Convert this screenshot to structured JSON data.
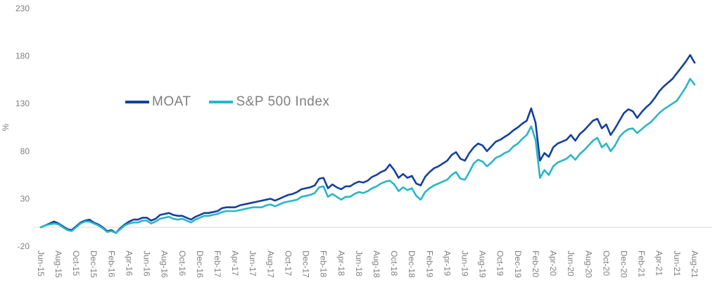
{
  "chart_data": {
    "type": "line",
    "title": "",
    "xlabel": "",
    "ylabel": "%",
    "ylim": [
      -20,
      230
    ],
    "y_ticks": [
      230,
      180,
      130,
      80,
      30,
      -20
    ],
    "grid": "zero-baseline-only",
    "baseline_value": 0,
    "points_per_month": 2,
    "legend_position": "inside-upper-left",
    "x_tick_labels": [
      "Jun-15",
      "Aug-15",
      "Oct-15",
      "Dec-15",
      "Feb-16",
      "Apr-16",
      "Jun-16",
      "Aug-16",
      "Oct-16",
      "Dec-16",
      "Feb-17",
      "Apr-17",
      "Jun-17",
      "Aug-17",
      "Oct-17",
      "Dec-17",
      "Feb-18",
      "Apr-18",
      "Jun-18",
      "Aug-18",
      "Oct-18",
      "Dec-18",
      "Feb-19",
      "Apr-19",
      "Jun-19",
      "Aug-19",
      "Oct-19",
      "Dec-19",
      "Feb-20",
      "Apr-20",
      "Jun-20",
      "Aug-20",
      "Oct-20",
      "Dec-20",
      "Feb-21",
      "Apr-21",
      "Jun-21",
      "Aug-21"
    ],
    "series": [
      {
        "name": "MOAT",
        "color": "#16409E",
        "values": [
          0,
          2,
          4,
          6,
          4,
          1,
          -2,
          -3,
          1,
          5,
          7,
          8,
          5,
          3,
          0,
          -4,
          -3,
          -6,
          -1,
          3,
          6,
          8,
          8,
          10,
          10,
          7,
          9,
          13,
          14,
          15,
          13,
          12,
          12,
          10,
          8,
          11,
          13,
          15,
          15,
          16,
          17,
          20,
          21,
          21,
          21,
          23,
          24,
          25,
          26,
          27,
          28,
          29,
          30,
          28,
          30,
          32,
          34,
          35,
          37,
          40,
          41,
          42,
          44,
          51,
          52,
          41,
          45,
          42,
          40,
          43,
          43,
          46,
          48,
          47,
          49,
          53,
          55,
          58,
          60,
          66,
          60,
          52,
          56,
          52,
          54,
          46,
          44,
          53,
          58,
          62,
          64,
          67,
          70,
          76,
          79,
          72,
          70,
          78,
          84,
          88,
          86,
          80,
          85,
          90,
          92,
          95,
          98,
          102,
          105,
          109,
          112,
          125,
          110,
          70,
          78,
          74,
          84,
          88,
          90,
          92,
          97,
          91,
          98,
          102,
          107,
          112,
          114,
          104,
          108,
          97,
          104,
          112,
          120,
          124,
          122,
          115,
          121,
          126,
          130,
          136,
          143,
          148,
          152,
          156,
          162,
          168,
          174,
          181,
          173
        ]
      },
      {
        "name": "S&P 500 Index",
        "color": "#29B6C8",
        "values": [
          0,
          2,
          3,
          4,
          3,
          0,
          -3,
          -4,
          0,
          4,
          6,
          6,
          4,
          2,
          -1,
          -5,
          -4,
          -6,
          -2,
          2,
          4,
          5,
          5,
          7,
          7,
          4,
          6,
          9,
          10,
          11,
          9,
          8,
          9,
          7,
          5,
          8,
          10,
          12,
          12,
          13,
          14,
          16,
          17,
          17,
          17,
          18,
          19,
          20,
          21,
          21,
          21,
          23,
          24,
          22,
          24,
          26,
          27,
          28,
          29,
          32,
          33,
          34,
          36,
          42,
          43,
          32,
          35,
          32,
          29,
          32,
          32,
          35,
          37,
          36,
          38,
          41,
          43,
          46,
          48,
          49,
          45,
          38,
          42,
          39,
          41,
          33,
          29,
          37,
          41,
          44,
          46,
          48,
          50,
          55,
          58,
          51,
          50,
          58,
          67,
          71,
          69,
          64,
          68,
          73,
          75,
          78,
          80,
          85,
          88,
          93,
          97,
          106,
          92,
          52,
          60,
          55,
          64,
          68,
          70,
          72,
          76,
          71,
          77,
          81,
          86,
          91,
          94,
          84,
          88,
          80,
          86,
          95,
          100,
          103,
          104,
          99,
          103,
          107,
          110,
          115,
          120,
          124,
          127,
          130,
          133,
          140,
          147,
          156,
          150
        ]
      }
    ]
  },
  "colors": {
    "axis_text": "#7f7f7f",
    "baseline_line": "#d9d9d9",
    "background": "#ffffff"
  }
}
